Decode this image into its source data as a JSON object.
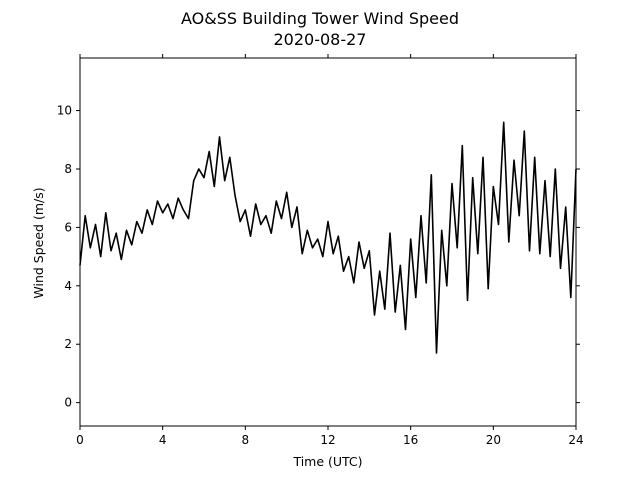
{
  "chart_data": {
    "type": "line",
    "title": "AO&SS Building Tower Wind Speed",
    "subtitle": "2020-08-27",
    "xlabel": "Time (UTC)",
    "ylabel": "Wind Speed (m/s)",
    "xlim": [
      0,
      24
    ],
    "ylim": [
      -0.8,
      11.8
    ],
    "xticks": [
      0,
      4,
      8,
      12,
      16,
      20,
      24
    ],
    "yticks": [
      0,
      2,
      4,
      6,
      8,
      10
    ],
    "grid": false,
    "legend": "none",
    "series": [
      {
        "color": "#000000",
        "x": [
          0.0,
          0.25,
          0.5,
          0.75,
          1.0,
          1.25,
          1.5,
          1.75,
          2.0,
          2.25,
          2.5,
          2.75,
          3.0,
          3.25,
          3.5,
          3.75,
          4.0,
          4.25,
          4.5,
          4.75,
          5.0,
          5.25,
          5.5,
          5.75,
          6.0,
          6.25,
          6.5,
          6.75,
          7.0,
          7.25,
          7.5,
          7.75,
          8.0,
          8.25,
          8.5,
          8.75,
          9.0,
          9.25,
          9.5,
          9.75,
          10.0,
          10.25,
          10.5,
          10.75,
          11.0,
          11.25,
          11.5,
          11.75,
          12.0,
          12.25,
          12.5,
          12.75,
          13.0,
          13.25,
          13.5,
          13.75,
          14.0,
          14.25,
          14.5,
          14.75,
          15.0,
          15.25,
          15.5,
          15.75,
          16.0,
          16.25,
          16.5,
          16.75,
          17.0,
          17.25,
          17.5,
          17.75,
          18.0,
          18.25,
          18.5,
          18.75,
          19.0,
          19.25,
          19.5,
          19.75,
          20.0,
          20.25,
          20.5,
          20.75,
          21.0,
          21.25,
          21.5,
          21.75,
          22.0,
          22.25,
          22.5,
          22.75,
          23.0,
          23.25,
          23.5,
          23.75,
          24.0
        ],
        "values": [
          4.7,
          6.4,
          5.3,
          6.1,
          5.0,
          6.5,
          5.2,
          5.8,
          4.9,
          5.9,
          5.4,
          6.2,
          5.8,
          6.6,
          6.1,
          6.9,
          6.5,
          6.8,
          6.3,
          7.0,
          6.6,
          6.3,
          7.6,
          8.0,
          7.7,
          8.6,
          7.4,
          9.1,
          7.6,
          8.4,
          7.1,
          6.2,
          6.6,
          5.7,
          6.8,
          6.1,
          6.4,
          5.8,
          6.9,
          6.3,
          7.2,
          6.0,
          6.7,
          5.1,
          5.9,
          5.3,
          5.6,
          5.0,
          6.2,
          5.1,
          5.7,
          4.5,
          5.0,
          4.1,
          5.5,
          4.6,
          5.2,
          3.0,
          4.5,
          3.2,
          5.8,
          3.1,
          4.7,
          2.5,
          5.6,
          3.6,
          6.4,
          4.1,
          7.8,
          1.7,
          5.9,
          4.0,
          7.5,
          5.3,
          8.8,
          3.5,
          7.7,
          5.1,
          8.4,
          3.9,
          7.4,
          6.1,
          9.6,
          5.5,
          8.3,
          6.4,
          9.3,
          5.2,
          8.4,
          5.1,
          7.6,
          5.0,
          8.0,
          4.6,
          6.7,
          3.6,
          8.0
        ]
      }
    ]
  }
}
